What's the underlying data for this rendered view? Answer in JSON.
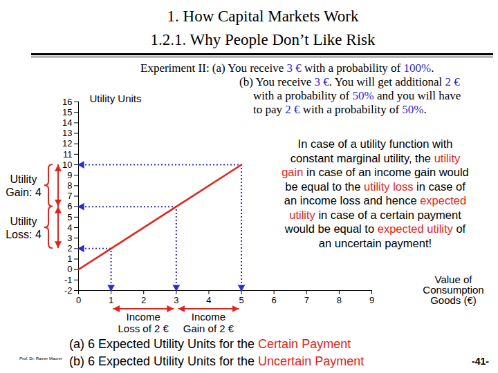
{
  "slide": {
    "title": [
      "1. How Capital Markets Work",
      "1.2.1. Why People Don’t Like Risk"
    ],
    "experiment": [
      [
        "Experiment II: (a) You receive ",
        {
          "text": "3 €",
          "color": "#2b2bd0"
        },
        " with a probability of ",
        {
          "text": "100%",
          "color": "#2b2bd0"
        },
        "."
      ],
      [
        "(b) You receive ",
        {
          "text": "3 €",
          "color": "#2b2bd0"
        },
        ". You will get additional ",
        {
          "text": "2 €",
          "color": "#2b2bd0"
        }
      ],
      [
        "with a probability of ",
        {
          "text": "50%",
          "color": "#2b2bd0"
        },
        " and you will have"
      ],
      [
        "to pay ",
        {
          "text": "2 €",
          "color": "#2b2bd0"
        },
        " with a probability of ",
        {
          "text": "50%",
          "color": "#2b2bd0"
        },
        "."
      ]
    ],
    "annotation": [
      [
        "In case of a utility function with"
      ],
      [
        "constant marginal utility, the ",
        {
          "text": "utility",
          "color": "#e3231b"
        }
      ],
      [
        {
          "text": "gain",
          "color": "#e3231b"
        },
        " in case of an income gain would"
      ],
      [
        "be equal to the ",
        {
          "text": "utility loss",
          "color": "#e3231b"
        },
        " in case of"
      ],
      [
        "an income loss and hence ",
        {
          "text": "expected",
          "color": "#e3231b"
        }
      ],
      [
        {
          "text": "utility",
          "color": "#e3231b"
        },
        " in case of a certain payment"
      ],
      [
        "would be equal to ",
        {
          "text": "expected utility",
          "color": "#e3231b"
        },
        " of"
      ],
      [
        "an uncertain payment!"
      ]
    ],
    "results": [
      [
        "(a) 6 Expected Utility Units for the ",
        {
          "text": "Certain Payment",
          "color": "#e3231b"
        }
      ],
      [
        "(b) 6 Expected Utility Units for the ",
        {
          "text": "Uncertain Payment",
          "color": "#e3231b"
        }
      ]
    ],
    "author": "Prof. Dr. Rainer Maurer",
    "page": "-41-"
  },
  "chart_data": {
    "type": "line",
    "ylabel": "Utility Units",
    "xlabel": "Value of\nConsumption\nGoods (€)",
    "x": [
      0,
      1,
      3,
      5
    ],
    "values": [
      0,
      2,
      6,
      10
    ],
    "color": "#e3231b",
    "xlim": [
      0,
      9
    ],
    "xticks": [
      0,
      1,
      2,
      3,
      4,
      5,
      6,
      7,
      8,
      9
    ],
    "ylim": [
      -2,
      16
    ],
    "yticks": [
      -2,
      -1,
      0,
      1,
      2,
      3,
      4,
      5,
      6,
      7,
      8,
      9,
      10,
      11,
      12,
      13,
      14,
      15,
      16
    ],
    "grid": false,
    "guides": [
      {
        "x": 1,
        "y": 2
      },
      {
        "x": 3,
        "y": 6
      },
      {
        "x": 5,
        "y": 10
      }
    ],
    "utility_changes": [
      {
        "label": "Utility\nGain: 4",
        "from": 6,
        "to": 10
      },
      {
        "label": "Utility\nLoss: 4",
        "from": 2,
        "to": 6
      }
    ],
    "income_changes": [
      {
        "label": "Income\nLoss of 2 €",
        "from": 1,
        "to": 3
      },
      {
        "label": "Income\nGain of 2 €",
        "from": 3,
        "to": 5
      }
    ]
  }
}
